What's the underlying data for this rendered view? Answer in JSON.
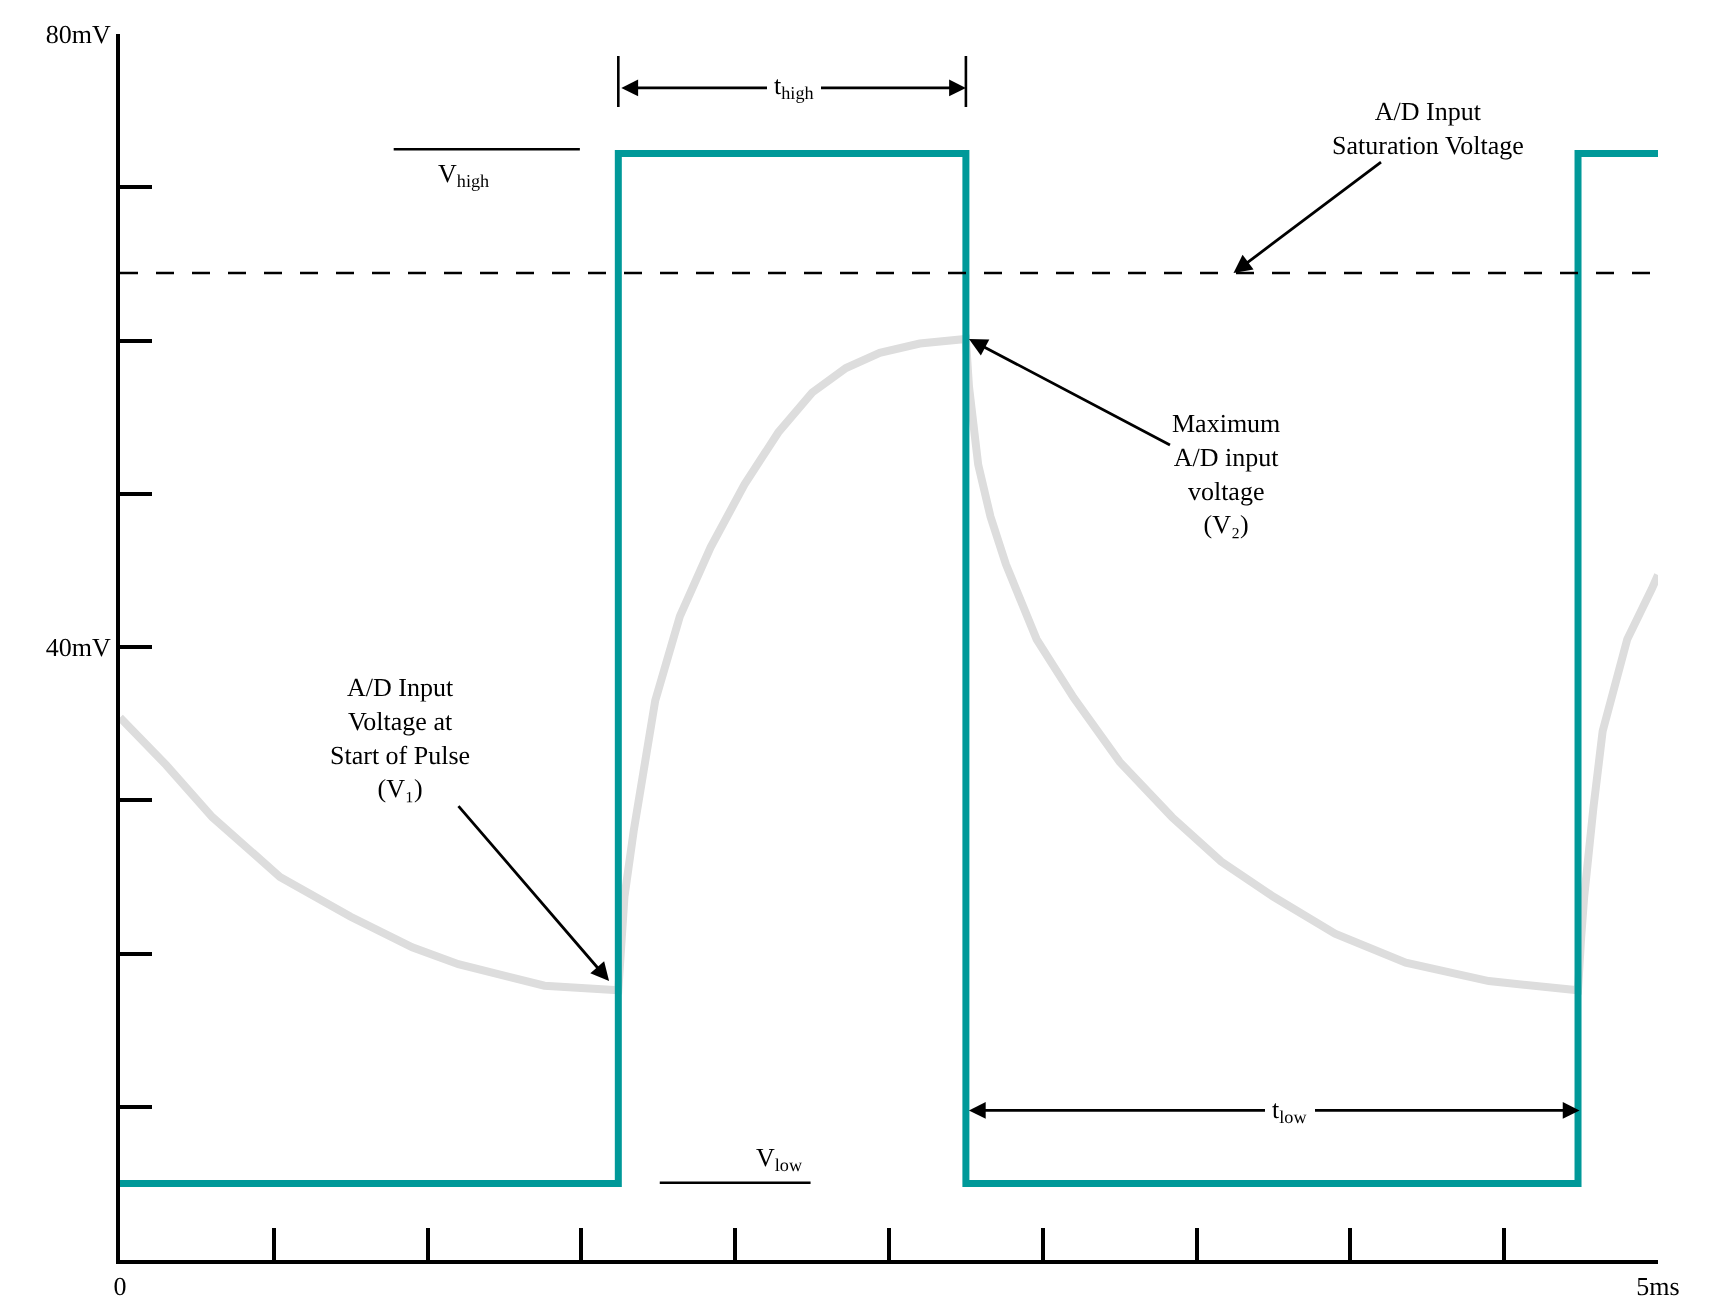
{
  "chart_data": {
    "type": "line",
    "xlim": [
      0,
      5
    ],
    "ylim": [
      0,
      80
    ],
    "xticks": [
      {
        "value": 0,
        "label": "0"
      },
      {
        "value": 0.5,
        "label": null
      },
      {
        "value": 1,
        "label": null
      },
      {
        "value": 1.5,
        "label": null
      },
      {
        "value": 2,
        "label": null
      },
      {
        "value": 2.5,
        "label": null
      },
      {
        "value": 3,
        "label": null
      },
      {
        "value": 3.5,
        "label": null
      },
      {
        "value": 4,
        "label": null
      },
      {
        "value": 4.5,
        "label": null
      },
      {
        "value": 5,
        "label": "5ms"
      }
    ],
    "yticks": [
      {
        "value": 0,
        "label": null
      },
      {
        "value": 10,
        "label": null
      },
      {
        "value": 20,
        "label": null
      },
      {
        "value": 30,
        "label": null
      },
      {
        "value": 40,
        "label": "40mV"
      },
      {
        "value": 50,
        "label": null
      },
      {
        "value": 60,
        "label": null
      },
      {
        "value": 70,
        "label": null
      },
      {
        "value": 80,
        "label": "80mV"
      }
    ],
    "grid": false,
    "marker": "none",
    "line_style": "solid",
    "series": [
      {
        "color": "#dddddd",
        "x": [
          0,
          0.15,
          0.3,
          0.52,
          0.75,
          0.95,
          1.1,
          1.38,
          1.62,
          1.64,
          1.67,
          1.74,
          1.82,
          1.92,
          2.03,
          2.14,
          2.25,
          2.36,
          2.47,
          2.6,
          2.75,
          2.76,
          2.79,
          2.83,
          2.88,
          2.98,
          3.1,
          3.25,
          3.42,
          3.58,
          3.75,
          3.95,
          4.18,
          4.45,
          4.74,
          4.75,
          4.76,
          4.79,
          4.82,
          4.9,
          4.98,
          5
        ],
        "values": [
          35.4,
          32.3,
          28.9,
          25.0,
          22.4,
          20.4,
          19.3,
          17.9,
          17.6,
          23.7,
          28.0,
          36.5,
          42.0,
          46.5,
          50.6,
          54.0,
          56.6,
          58.2,
          59.2,
          59.8,
          60.1,
          57.0,
          51.9,
          48.5,
          45.4,
          40.5,
          36.7,
          32.5,
          28.9,
          26.0,
          23.7,
          21.3,
          19.4,
          18.2,
          17.6,
          21.0,
          23.7,
          29.5,
          34.5,
          40.5,
          43.8,
          44.7
        ]
      },
      {
        "color": "#009999",
        "x": [
          0,
          1.62,
          1.62,
          2.75,
          2.75,
          4.74,
          4.74,
          5
        ],
        "values": [
          5.0,
          5.0,
          72.2,
          72.2,
          5.0,
          5.0,
          72.2,
          72.2
        ]
      }
    ],
    "ref_lines": [
      {
        "axis": "y",
        "value": 64.4,
        "label": null,
        "color": "#000000",
        "line_style": "dashed"
      }
    ],
    "annotations": [
      {
        "text": "A/D Input\nSaturation Voltage",
        "x": 3.62,
        "y": 64.4
      },
      {
        "text": "Maximum\nA/D input\nvoltage\n(V₂)",
        "x": 2.76,
        "y": 60.1
      },
      {
        "text": "A/D Input\nVoltage at\nStart of Pulse\n(V₁)",
        "x": 1.59,
        "y": 18.2
      },
      "t$_{high}$",
      "t$_{low}$",
      "V$_{high}$",
      "V$_{low}$"
    ]
  }
}
